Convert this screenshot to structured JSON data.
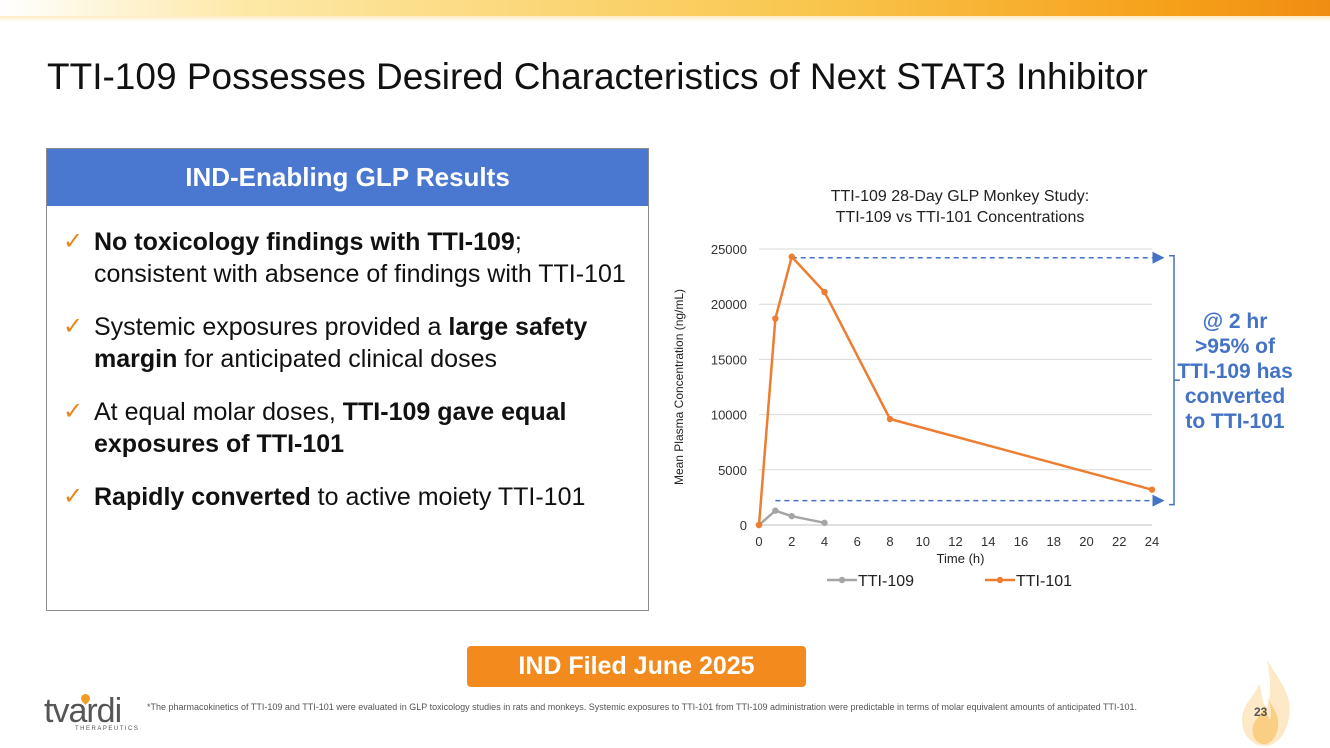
{
  "slide": {
    "title": "TTI-109 Possesses Desired Characteristics of Next STAT3 Inhibitor",
    "panel_header": "IND-Enabling GLP Results",
    "bullets": [
      {
        "parts": [
          {
            "text": "No toxicology findings with TTI-109",
            "bold": true
          },
          {
            "text": "; consistent with absence of findings with TTI-101",
            "bold": false
          }
        ]
      },
      {
        "parts": [
          {
            "text": "Systemic exposures provided a ",
            "bold": false
          },
          {
            "text": "large safety margin",
            "bold": true
          },
          {
            "text": " for anticipated clinical doses",
            "bold": false
          }
        ]
      },
      {
        "parts": [
          {
            "text": "At equal molar doses, ",
            "bold": false
          },
          {
            "text": "TTI-109 gave equal exposures of TTI-101",
            "bold": true
          }
        ]
      },
      {
        "parts": [
          {
            "text": "Rapidly converted",
            "bold": true
          },
          {
            "text": " to active moiety TTI-101",
            "bold": false
          }
        ]
      }
    ],
    "check_glyph": "✓",
    "callout": "@ 2 hr >95% of TTI-109 has converted to TTI-101",
    "ind_banner": "IND Filed June 2025",
    "footnote": "*The pharmacokinetics of TTI-109 and TTI-101 were evaluated in GLP toxicology studies in rats and monkeys. Systemic exposures to TTI-101 from TTI-109 administration were predictable in terms of molar equivalent amounts of anticipated TTI-101.",
    "page_number": "23",
    "logo": {
      "word": "tvardi",
      "sub": "THERAPEUTICS"
    },
    "colors": {
      "accent_orange": "#f28a1e",
      "header_blue": "#4a77cf",
      "callout_blue": "#4472c4",
      "tti109": "#a5a5a5",
      "tti101": "#ed7d31"
    }
  },
  "chart_data": {
    "type": "line",
    "title": "TTI-109 28-Day GLP Monkey Study: TTI-109 vs TTI-101 Concentrations",
    "title_lines": [
      "TTI-109 28-Day GLP Monkey Study:",
      "TTI-109 vs TTI-101 Concentrations"
    ],
    "xlabel": "Time (h)",
    "ylabel": "Mean Plasma Concentration (ng/mL)",
    "xlim": [
      0,
      24
    ],
    "ylim": [
      0,
      25000
    ],
    "x_ticks": [
      0,
      2,
      4,
      6,
      8,
      10,
      12,
      14,
      16,
      18,
      20,
      22,
      24
    ],
    "y_ticks": [
      0,
      5000,
      10000,
      15000,
      20000,
      25000
    ],
    "grid": "horizontal",
    "legend": "bottom",
    "series": [
      {
        "name": "TTI-109",
        "color": "#a5a5a5",
        "x": [
          0,
          1,
          2,
          4
        ],
        "y": [
          0,
          1300,
          800,
          200
        ]
      },
      {
        "name": "TTI-101",
        "color": "#ed7d31",
        "x": [
          0,
          1,
          2,
          4,
          8,
          24
        ],
        "y": [
          0,
          18700,
          24300,
          21100,
          9600,
          3200
        ]
      }
    ]
  }
}
